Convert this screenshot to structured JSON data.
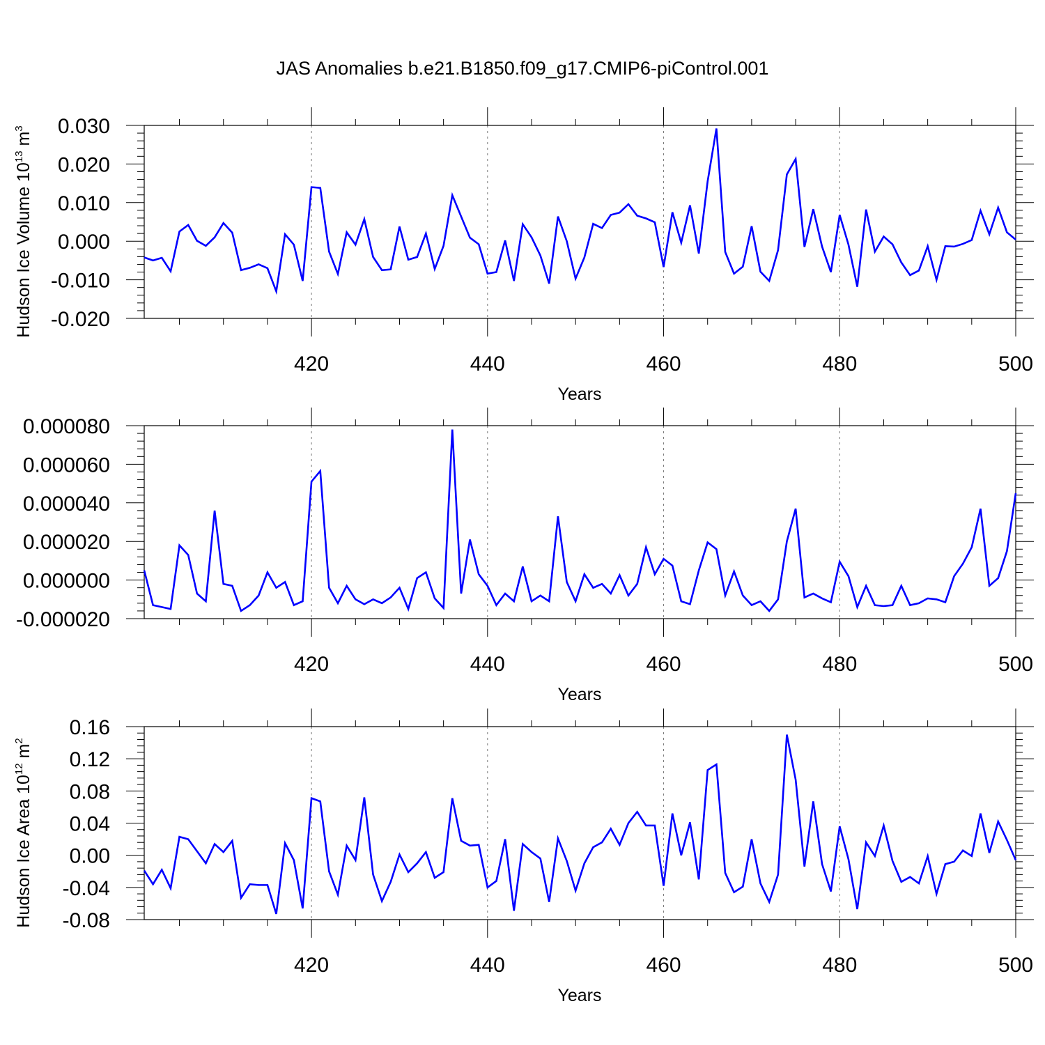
{
  "title": "JAS Anomalies b.e21.B1850.f09_g17.CMIP6-piControl.001",
  "line_color": "#0000ff",
  "chart_data": [
    {
      "type": "line",
      "xlabel": "Years",
      "ylabel": {
        "main": "Hudson Ice Volume 10",
        "sup1": "13",
        "mid": " m",
        "sup2": "3"
      },
      "xlim": [
        401,
        500
      ],
      "ylim": [
        -0.02,
        0.03
      ],
      "x_ticks": [
        420,
        440,
        460,
        480,
        500
      ],
      "x_tick_labels": [
        "420",
        "440",
        "460",
        "480",
        "500"
      ],
      "y_ticks": [
        0.03,
        0.02,
        0.01,
        0.0,
        -0.01,
        -0.02
      ],
      "y_tick_labels": [
        "0.030",
        "0.020",
        "0.010",
        "0.000",
        "-0.010",
        "-0.020"
      ],
      "grid": "dashed vertical at major x ticks",
      "series": [
        {
          "x_start": 401,
          "values": [
            -0.0042,
            -0.005,
            -0.0043,
            -0.0078,
            0.0025,
            0.0042,
            0.0001,
            -0.0012,
            0.001,
            0.0047,
            0.0022,
            -0.0075,
            -0.0069,
            -0.006,
            -0.007,
            -0.013,
            0.0018,
            -0.0009,
            -0.0103,
            0.014,
            0.0138,
            -0.0027,
            -0.0085,
            0.0023,
            -0.0009,
            0.0057,
            -0.0041,
            -0.0075,
            -0.0073,
            0.0038,
            -0.0048,
            -0.0041,
            0.002,
            -0.0072,
            -0.0012,
            0.0119,
            0.0064,
            0.0009,
            -0.0008,
            -0.0084,
            -0.008,
            0.0002,
            -0.0103,
            0.0044,
            0.001,
            -0.0037,
            -0.011,
            0.0064,
            0.0,
            -0.0097,
            -0.0042,
            0.0045,
            0.0034,
            0.0068,
            0.0074,
            0.0096,
            0.0066,
            0.0059,
            0.0049,
            -0.0067,
            0.0075,
            -0.0004,
            0.0093,
            -0.0032,
            0.0155,
            0.0292,
            -0.0028,
            -0.0084,
            -0.0066,
            0.0039,
            -0.0079,
            -0.0103,
            -0.0023,
            0.0173,
            0.0213,
            -0.0015,
            0.0083,
            -0.0014,
            -0.008,
            0.0068,
            -0.0009,
            -0.0118,
            0.0082,
            -0.0027,
            0.0012,
            -0.0008,
            -0.0055,
            -0.0088,
            -0.0076,
            -0.0013,
            -0.01,
            -0.0013,
            -0.0014,
            -0.0007,
            0.0003,
            0.0079,
            0.0018,
            0.0087,
            0.0023,
            0.0004
          ]
        }
      ]
    },
    {
      "type": "line",
      "xlabel": "Years",
      "xlim": [
        401,
        500
      ],
      "ylim": [
        -2e-05,
        8e-05
      ],
      "x_ticks": [
        420,
        440,
        460,
        480,
        500
      ],
      "x_tick_labels": [
        "420",
        "440",
        "460",
        "480",
        "500"
      ],
      "y_ticks": [
        8e-05,
        6e-05,
        4e-05,
        2e-05,
        0.0,
        -2e-05
      ],
      "y_tick_labels": [
        "0.000080",
        "0.000060",
        "0.000040",
        "0.000020",
        "0.000000",
        "-0.000020"
      ],
      "grid": "dashed vertical at major x ticks",
      "series": [
        {
          "x_start": 401,
          "values": [
            5e-06,
            -1.3e-05,
            -1.4e-05,
            -1.5e-05,
            1.8e-05,
            1.3e-05,
            -7e-06,
            -1.1e-05,
            3.6e-05,
            -2e-06,
            -3e-06,
            -1.6e-05,
            -1.3e-05,
            -8e-06,
            4e-06,
            -4e-06,
            -1e-06,
            -1.3e-05,
            -1.1e-05,
            5.1e-05,
            5.65e-05,
            -4e-06,
            -1.2e-05,
            -3e-06,
            -1e-05,
            -1.25e-05,
            -1e-05,
            -1.2e-05,
            -9e-06,
            -4e-06,
            -1.5e-05,
            1e-06,
            4e-06,
            -9.5e-06,
            -1.45e-05,
            7.8e-05,
            -7e-06,
            2.1e-05,
            3e-06,
            -3e-06,
            -1.3e-05,
            -7e-06,
            -1.1e-05,
            7e-06,
            -1.1e-05,
            -8e-06,
            -1.1e-05,
            3.3e-05,
            -1e-06,
            -1.1e-05,
            3e-06,
            -4e-06,
            -2e-06,
            -7e-06,
            2.5e-06,
            -8e-06,
            -2e-06,
            1.7e-05,
            3e-06,
            1.1e-05,
            7.5e-06,
            -1.1e-05,
            -1.25e-05,
            5e-06,
            1.95e-05,
            1.6e-05,
            -8e-06,
            4.5e-06,
            -8e-06,
            -1.3e-05,
            -1.1e-05,
            -1.6e-05,
            -1e-05,
            2e-05,
            3.7e-05,
            -9e-06,
            -7e-06,
            -9.5e-06,
            -1.15e-05,
            9.5e-06,
            2e-06,
            -1.4e-05,
            -3e-06,
            -1.3e-05,
            -1.35e-05,
            -1.3e-05,
            -3e-06,
            -1.3e-05,
            -1.2e-05,
            -9.5e-06,
            -1e-05,
            -1.15e-05,
            2e-06,
            8.5e-06,
            1.7e-05,
            3.7e-05,
            -3e-06,
            1e-06,
            1.5e-05,
            4.5e-05
          ]
        }
      ]
    },
    {
      "type": "line",
      "xlabel": "Years",
      "ylabel": {
        "main": "Hudson Ice Area 10",
        "sup1": "12",
        "mid": " m",
        "sup2": "2"
      },
      "xlim": [
        401,
        500
      ],
      "ylim": [
        -0.08,
        0.16
      ],
      "x_ticks": [
        420,
        440,
        460,
        480,
        500
      ],
      "x_tick_labels": [
        "420",
        "440",
        "460",
        "480",
        "500"
      ],
      "y_ticks": [
        0.16,
        0.12,
        0.08,
        0.04,
        0.0,
        -0.04,
        -0.08
      ],
      "y_tick_labels": [
        "0.16",
        "0.12",
        "0.08",
        "0.04",
        "0.00",
        "-0.04",
        "-0.08"
      ],
      "grid": "dashed vertical at major x ticks",
      "series": [
        {
          "x_start": 401,
          "values": [
            -0.019,
            -0.036,
            -0.018,
            -0.041,
            0.023,
            0.02,
            0.005,
            -0.01,
            0.014,
            0.004,
            0.018,
            -0.053,
            -0.036,
            -0.037,
            -0.037,
            -0.073,
            0.015,
            -0.006,
            -0.066,
            0.071,
            0.067,
            -0.02,
            -0.049,
            0.012,
            -0.006,
            0.072,
            -0.024,
            -0.057,
            -0.033,
            0.001,
            -0.021,
            -0.01,
            0.004,
            -0.028,
            -0.021,
            0.071,
            0.018,
            0.012,
            0.013,
            -0.04,
            -0.032,
            0.02,
            -0.069,
            0.014,
            0.004,
            -0.004,
            -0.058,
            0.021,
            -0.007,
            -0.044,
            -0.01,
            0.01,
            0.016,
            0.033,
            0.013,
            0.04,
            0.054,
            0.037,
            0.037,
            -0.038,
            0.052,
            0.0,
            0.041,
            -0.03,
            0.106,
            0.113,
            -0.022,
            -0.046,
            -0.039,
            0.02,
            -0.035,
            -0.058,
            -0.024,
            0.15,
            0.094,
            -0.014,
            0.067,
            -0.011,
            -0.045,
            0.036,
            -0.005,
            -0.067,
            0.016,
            -0.001,
            0.037,
            -0.007,
            -0.033,
            -0.027,
            -0.035,
            -0.001,
            -0.048,
            -0.011,
            -0.008,
            0.006,
            -0.001,
            0.052,
            0.003,
            0.042,
            0.019,
            -0.006
          ]
        }
      ]
    }
  ]
}
